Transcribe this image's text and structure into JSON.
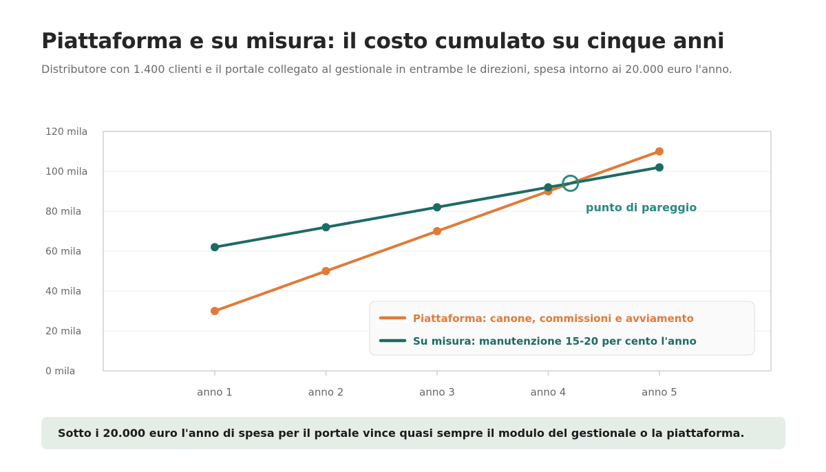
{
  "title": "Piattaforma e su misura: il costo cumulato su cinque anni",
  "subtitle": "Distributore con 1.400 clienti e il portale collegato al gestionale in entrambe le direzioni, spesa intorno ai 20.000 euro l'anno.",
  "note": "Sotto i 20.000 euro l'anno di spesa per il portale vince quasi sempre il modulo del gestionale o la piattaforma.",
  "colors": {
    "platform": "#e07b39",
    "custom": "#1d6b65",
    "annotation": "#2a8a80"
  },
  "chart_data": {
    "type": "line",
    "categories": [
      "anno 1",
      "anno 2",
      "anno 3",
      "anno 4",
      "anno 5"
    ],
    "ylim": [
      0,
      120
    ],
    "yticks": [
      0,
      20,
      40,
      60,
      80,
      100,
      120
    ],
    "ytick_labels": [
      "0 mila",
      "20 mila",
      "40 mila",
      "60 mila",
      "80 mila",
      "100 mila",
      "120 mila"
    ],
    "grid": true,
    "legend_position": "bottom-right",
    "series": [
      {
        "name": "Piattaforma: canone, commissioni e avviamento",
        "values": [
          30,
          50,
          70,
          90,
          110
        ],
        "color": "#e07b39"
      },
      {
        "name": "Su misura: manutenzione 15-20 per cento l'anno",
        "values": [
          62,
          72,
          82,
          92,
          102
        ],
        "color": "#1d6b65"
      }
    ],
    "annotations": [
      {
        "text": "punto di pareggio",
        "x": 4.2,
        "y": 94
      }
    ]
  }
}
